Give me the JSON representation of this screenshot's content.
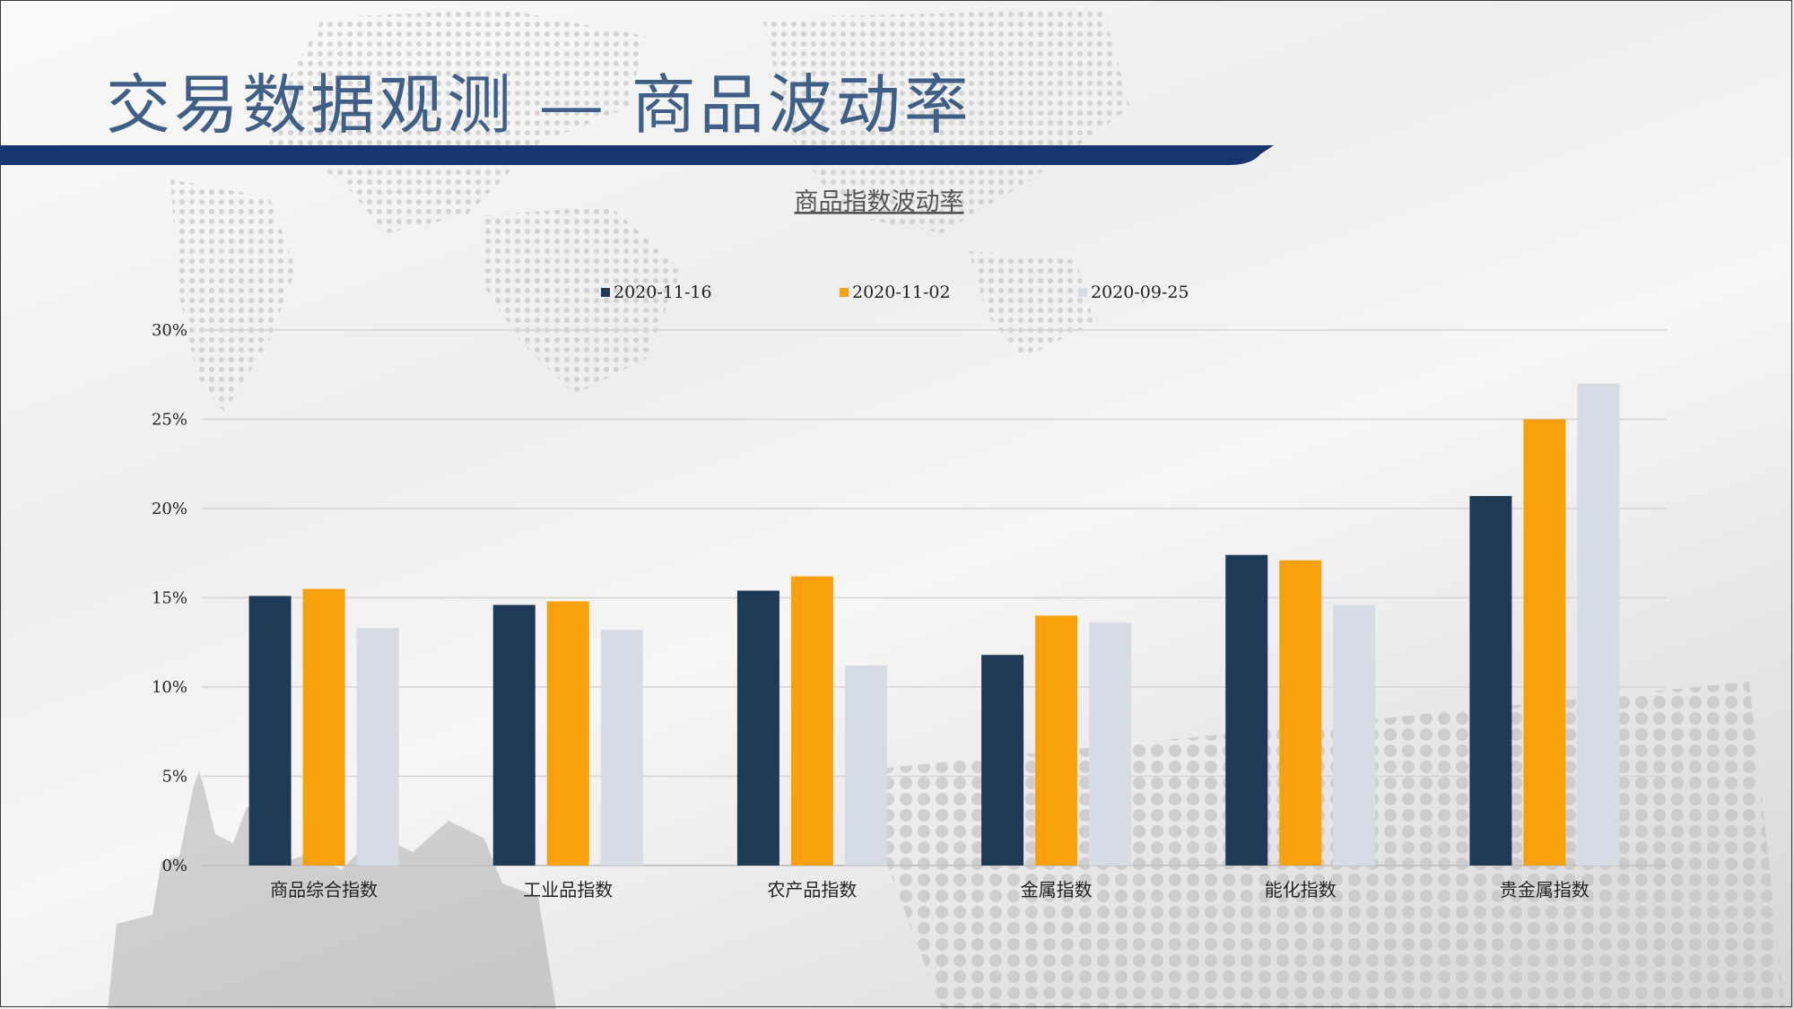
{
  "slide": {
    "title": "交易数据观测  —  商品波动率"
  },
  "colors": {
    "title": "#3f5f87",
    "title_bar": "#17356e",
    "grid": "#d4d4d4"
  },
  "chart_data": {
    "type": "bar",
    "title": "商品指数波动率",
    "xlabel": "",
    "ylabel": "",
    "ylim": [
      0,
      0.3
    ],
    "yticks": [
      0,
      0.05,
      0.1,
      0.15,
      0.2,
      0.25,
      0.3
    ],
    "ytick_labels": [
      "0%",
      "5%",
      "10%",
      "15%",
      "20%",
      "25%",
      "30%"
    ],
    "grid": true,
    "legend_position": "top-center",
    "categories": [
      "商品综合指数",
      "工业品指数",
      "农产品指数",
      "金属指数",
      "能化指数",
      "贵金属指数"
    ],
    "series": [
      {
        "name": "2020-11-16",
        "color": "#1f3a57",
        "values": [
          0.151,
          0.146,
          0.154,
          0.118,
          0.174,
          0.207
        ]
      },
      {
        "name": "2020-11-02",
        "color": "#f8a10c",
        "values": [
          0.155,
          0.148,
          0.162,
          0.14,
          0.171,
          0.25
        ]
      },
      {
        "name": "2020-09-25",
        "color": "#d6dce5",
        "values": [
          0.133,
          0.132,
          0.112,
          0.136,
          0.146,
          0.27
        ]
      }
    ]
  }
}
